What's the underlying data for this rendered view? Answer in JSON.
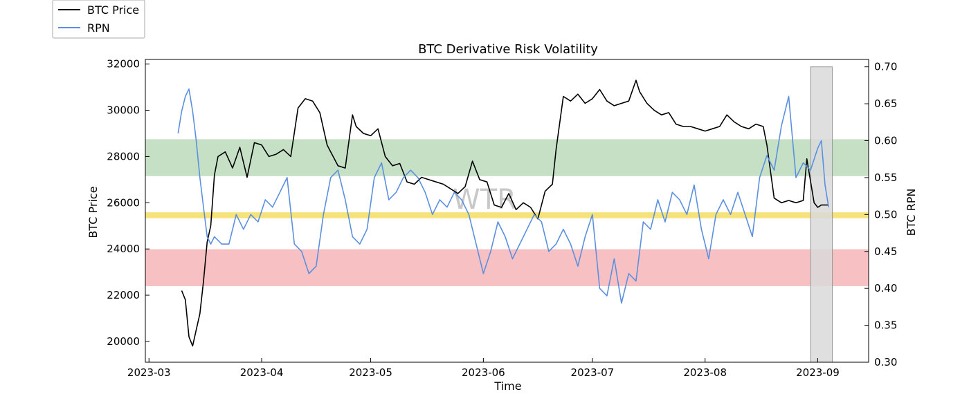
{
  "chart_data": {
    "type": "line",
    "title": "BTC Derivative Risk Volatility",
    "xlabel": "Time",
    "ylabel_left": "BTC Price",
    "ylabel_right": "BTC RPN",
    "watermark": "WTR",
    "x_tick_labels": [
      "2023-03",
      "2023-04",
      "2023-05",
      "2023-06",
      "2023-07",
      "2023-08",
      "2023-09"
    ],
    "x_ticks": [
      "2023-03-01",
      "2023-04-01",
      "2023-05-01",
      "2023-06-01",
      "2023-07-01",
      "2023-08-01",
      "2023-09-01"
    ],
    "xlim": [
      "2023-02-28",
      "2023-09-15"
    ],
    "y_left": {
      "ylim": [
        19100,
        32200
      ],
      "ticks": [
        20000,
        22000,
        24000,
        26000,
        28000,
        30000,
        32000
      ]
    },
    "y_right": {
      "ylim": [
        0.3,
        0.71
      ],
      "ticks": [
        0.3,
        0.35,
        0.4,
        0.45,
        0.5,
        0.55,
        0.6,
        0.65,
        0.7
      ],
      "tick_labels": [
        "0.30",
        "0.35",
        "0.40",
        "0.45",
        "0.50",
        "0.55",
        "0.60",
        "0.65",
        "0.70"
      ]
    },
    "bands": [
      {
        "axis": "right",
        "from": 0.552,
        "to": 0.602,
        "color": "#c6e0c6"
      },
      {
        "axis": "right",
        "from": 0.495,
        "to": 0.503,
        "color": "#f5e27a"
      },
      {
        "axis": "right",
        "from": 0.403,
        "to": 0.453,
        "color": "#f7c1c3"
      }
    ],
    "highlight": {
      "from": "2023-08-30",
      "to": "2023-09-05",
      "y_from": 0.3,
      "y_to": 0.7,
      "color": "#d9d9d9",
      "edge": "#999999"
    },
    "legend": {
      "position": "top-left"
    },
    "series": [
      {
        "name": "BTC Price",
        "axis": "left",
        "color": "#000000",
        "x": [
          "2023-03-10",
          "2023-03-11",
          "2023-03-12",
          "2023-03-13",
          "2023-03-14",
          "2023-03-15",
          "2023-03-16",
          "2023-03-17",
          "2023-03-18",
          "2023-03-19",
          "2023-03-20",
          "2023-03-22",
          "2023-03-24",
          "2023-03-26",
          "2023-03-28",
          "2023-03-30",
          "2023-04-01",
          "2023-04-03",
          "2023-04-05",
          "2023-04-07",
          "2023-04-09",
          "2023-04-11",
          "2023-04-13",
          "2023-04-15",
          "2023-04-17",
          "2023-04-19",
          "2023-04-20",
          "2023-04-22",
          "2023-04-24",
          "2023-04-26",
          "2023-04-27",
          "2023-04-29",
          "2023-05-01",
          "2023-05-03",
          "2023-05-05",
          "2023-05-07",
          "2023-05-09",
          "2023-05-11",
          "2023-05-13",
          "2023-05-15",
          "2023-05-17",
          "2023-05-19",
          "2023-05-21",
          "2023-05-23",
          "2023-05-25",
          "2023-05-27",
          "2023-05-29",
          "2023-05-31",
          "2023-06-02",
          "2023-06-04",
          "2023-06-06",
          "2023-06-08",
          "2023-06-10",
          "2023-06-12",
          "2023-06-14",
          "2023-06-16",
          "2023-06-18",
          "2023-06-20",
          "2023-06-21",
          "2023-06-23",
          "2023-06-25",
          "2023-06-27",
          "2023-06-29",
          "2023-07-01",
          "2023-07-03",
          "2023-07-05",
          "2023-07-07",
          "2023-07-09",
          "2023-07-11",
          "2023-07-13",
          "2023-07-14",
          "2023-07-16",
          "2023-07-18",
          "2023-07-20",
          "2023-07-22",
          "2023-07-24",
          "2023-07-26",
          "2023-07-28",
          "2023-07-30",
          "2023-08-01",
          "2023-08-03",
          "2023-08-05",
          "2023-08-07",
          "2023-08-09",
          "2023-08-11",
          "2023-08-13",
          "2023-08-15",
          "2023-08-17",
          "2023-08-18",
          "2023-08-20",
          "2023-08-22",
          "2023-08-24",
          "2023-08-26",
          "2023-08-28",
          "2023-08-29",
          "2023-08-31",
          "2023-09-01",
          "2023-09-02",
          "2023-09-04"
        ],
        "values": [
          22200,
          21800,
          20200,
          19800,
          20500,
          21200,
          22600,
          24300,
          25000,
          27200,
          28000,
          28200,
          27500,
          28400,
          27100,
          28600,
          28500,
          28000,
          28100,
          28300,
          28000,
          30100,
          30500,
          30400,
          29900,
          28500,
          28200,
          27600,
          27500,
          29800,
          29300,
          29000,
          28900,
          29200,
          28000,
          27600,
          27700,
          26900,
          26800,
          27100,
          27000,
          26900,
          26800,
          26600,
          26400,
          26700,
          27800,
          27000,
          26900,
          25900,
          25800,
          26400,
          25700,
          26000,
          25800,
          25300,
          26500,
          26800,
          28300,
          30600,
          30400,
          30700,
          30300,
          30500,
          30900,
          30400,
          30200,
          30300,
          30400,
          31300,
          30800,
          30300,
          30000,
          29800,
          29900,
          29400,
          29300,
          29300,
          29200,
          29100,
          29200,
          29300,
          29800,
          29500,
          29300,
          29200,
          29400,
          29300,
          28500,
          26200,
          26000,
          26100,
          26000,
          26100,
          27900,
          26000,
          25800,
          25900,
          25900
        ]
      },
      {
        "name": "RPN",
        "axis": "right",
        "color": "#5b8fe0",
        "x": [
          "2023-03-09",
          "2023-03-10",
          "2023-03-11",
          "2023-03-12",
          "2023-03-13",
          "2023-03-14",
          "2023-03-15",
          "2023-03-16",
          "2023-03-17",
          "2023-03-18",
          "2023-03-19",
          "2023-03-21",
          "2023-03-23",
          "2023-03-25",
          "2023-03-27",
          "2023-03-29",
          "2023-03-31",
          "2023-04-02",
          "2023-04-04",
          "2023-04-06",
          "2023-04-08",
          "2023-04-10",
          "2023-04-12",
          "2023-04-14",
          "2023-04-16",
          "2023-04-18",
          "2023-04-20",
          "2023-04-22",
          "2023-04-24",
          "2023-04-26",
          "2023-04-28",
          "2023-04-30",
          "2023-05-02",
          "2023-05-04",
          "2023-05-06",
          "2023-05-08",
          "2023-05-10",
          "2023-05-12",
          "2023-05-14",
          "2023-05-16",
          "2023-05-18",
          "2023-05-20",
          "2023-05-22",
          "2023-05-24",
          "2023-05-26",
          "2023-05-28",
          "2023-05-30",
          "2023-06-01",
          "2023-06-03",
          "2023-06-05",
          "2023-06-07",
          "2023-06-09",
          "2023-06-11",
          "2023-06-13",
          "2023-06-15",
          "2023-06-17",
          "2023-06-19",
          "2023-06-21",
          "2023-06-23",
          "2023-06-25",
          "2023-06-27",
          "2023-06-29",
          "2023-07-01",
          "2023-07-03",
          "2023-07-05",
          "2023-07-07",
          "2023-07-09",
          "2023-07-11",
          "2023-07-13",
          "2023-07-15",
          "2023-07-17",
          "2023-07-19",
          "2023-07-21",
          "2023-07-23",
          "2023-07-25",
          "2023-07-27",
          "2023-07-29",
          "2023-07-31",
          "2023-08-02",
          "2023-08-04",
          "2023-08-06",
          "2023-08-08",
          "2023-08-10",
          "2023-08-12",
          "2023-08-14",
          "2023-08-16",
          "2023-08-18",
          "2023-08-20",
          "2023-08-22",
          "2023-08-24",
          "2023-08-26",
          "2023-08-28",
          "2023-08-30",
          "2023-09-01",
          "2023-09-02",
          "2023-09-03",
          "2023-09-04"
        ],
        "values": [
          0.61,
          0.64,
          0.66,
          0.67,
          0.64,
          0.6,
          0.55,
          0.51,
          0.47,
          0.46,
          0.47,
          0.46,
          0.46,
          0.5,
          0.48,
          0.5,
          0.49,
          0.52,
          0.51,
          0.53,
          0.55,
          0.46,
          0.45,
          0.42,
          0.43,
          0.5,
          0.55,
          0.56,
          0.52,
          0.47,
          0.46,
          0.48,
          0.55,
          0.57,
          0.52,
          0.53,
          0.55,
          0.56,
          0.55,
          0.53,
          0.5,
          0.52,
          0.51,
          0.53,
          0.52,
          0.5,
          0.46,
          0.42,
          0.45,
          0.49,
          0.47,
          0.44,
          0.46,
          0.48,
          0.5,
          0.49,
          0.45,
          0.46,
          0.48,
          0.46,
          0.43,
          0.47,
          0.5,
          0.4,
          0.39,
          0.44,
          0.38,
          0.42,
          0.41,
          0.49,
          0.48,
          0.52,
          0.49,
          0.53,
          0.52,
          0.5,
          0.54,
          0.48,
          0.44,
          0.5,
          0.52,
          0.5,
          0.53,
          0.5,
          0.47,
          0.55,
          0.58,
          0.56,
          0.62,
          0.66,
          0.55,
          0.57,
          0.56,
          0.59,
          0.6,
          0.54,
          0.51
        ]
      }
    ]
  }
}
